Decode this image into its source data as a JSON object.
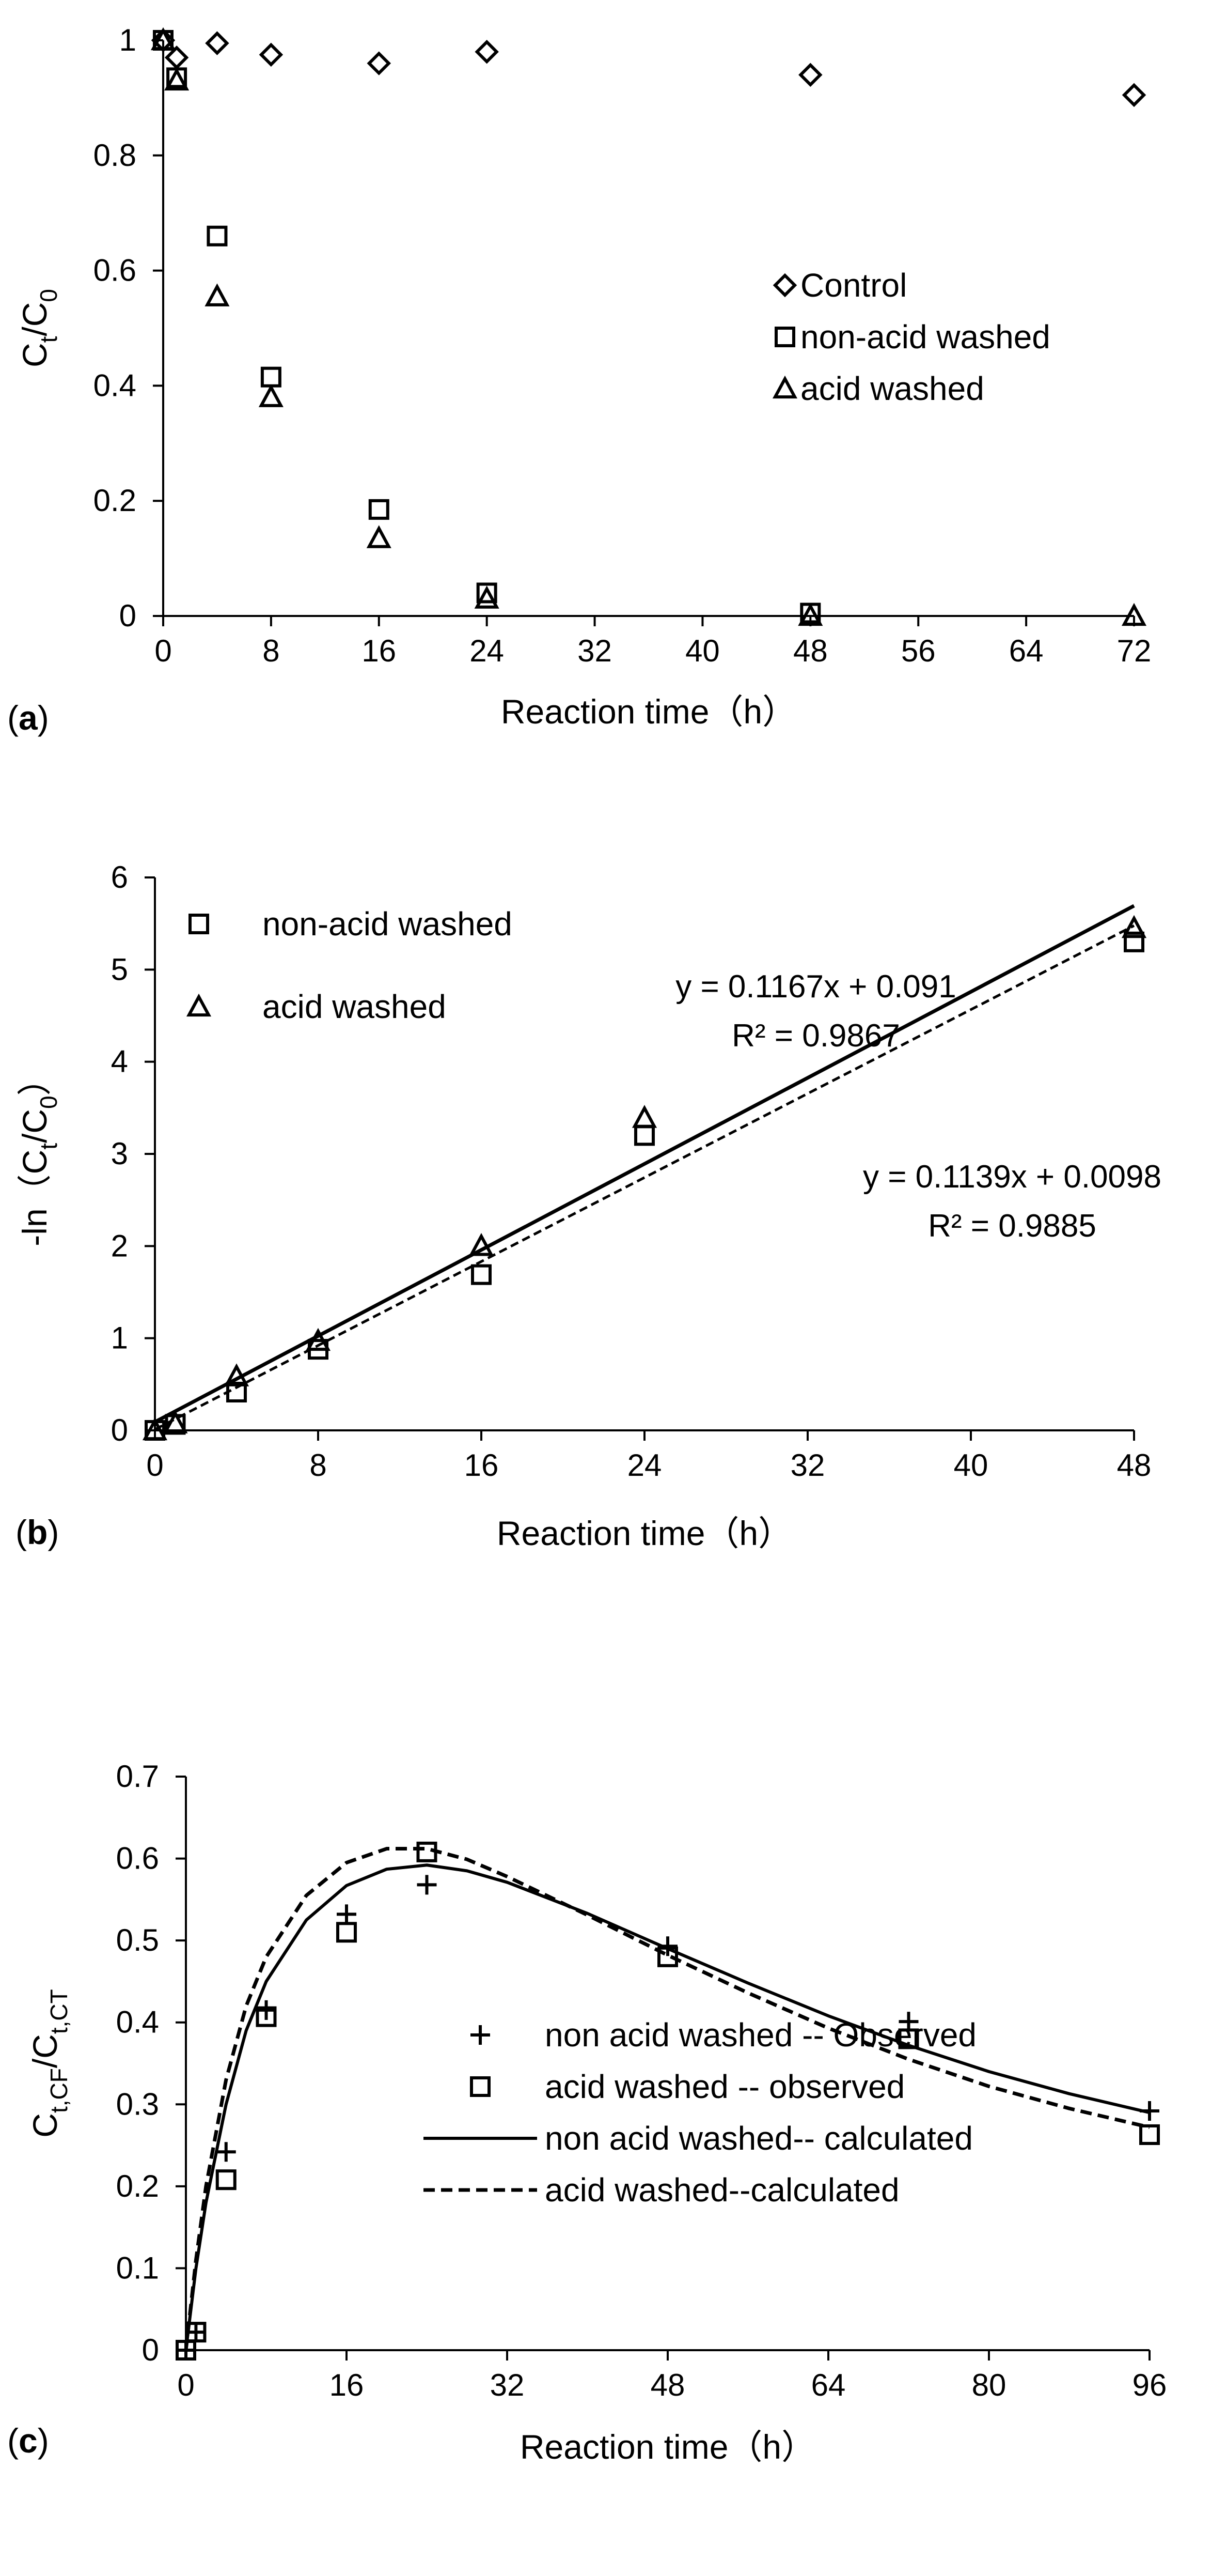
{
  "chart_data": [
    {
      "panel": "a",
      "type": "scatter",
      "panel_label": "a",
      "xlabel": "Reaction time（h）",
      "ylabel": {
        "base": "C",
        "sub1": "t",
        "mid": "/C",
        "sub2": "0"
      },
      "xlim": [
        0,
        72
      ],
      "ylim": [
        0,
        1
      ],
      "x_ticks": [
        0,
        8,
        16,
        24,
        32,
        40,
        48,
        56,
        64,
        72
      ],
      "y_ticks": [
        "0",
        "0.2",
        "0.4",
        "0.6",
        "0.8",
        "1"
      ],
      "legend_position": "right",
      "series": [
        {
          "name": "Control",
          "marker": "diamond",
          "x": [
            0,
            1,
            4,
            8,
            16,
            24,
            48,
            72
          ],
          "y": [
            1.0,
            0.97,
            0.995,
            0.975,
            0.96,
            0.98,
            0.94,
            0.905
          ]
        },
        {
          "name": "non-acid washed",
          "marker": "square",
          "x": [
            0,
            1,
            4,
            8,
            16,
            24,
            48
          ],
          "y": [
            1.0,
            0.935,
            0.66,
            0.415,
            0.185,
            0.04,
            0.005
          ]
        },
        {
          "name": "acid washed",
          "marker": "triangle",
          "x": [
            0,
            1,
            4,
            8,
            16,
            24,
            48,
            72
          ],
          "y": [
            1.0,
            0.93,
            0.555,
            0.38,
            0.135,
            0.03,
            0.0,
            0.0
          ]
        }
      ]
    },
    {
      "panel": "b",
      "type": "scatter",
      "panel_label": "b",
      "xlabel": "Reaction time（h）",
      "ylabel": {
        "pre": "-ln（C",
        "sub1": "t",
        "mid": "/C",
        "sub2": "0",
        "post": "）"
      },
      "xlim": [
        0,
        48
      ],
      "ylim": [
        0,
        6
      ],
      "x_ticks": [
        0,
        8,
        16,
        24,
        32,
        40,
        48
      ],
      "y_ticks": [
        "0",
        "1",
        "2",
        "3",
        "4",
        "5",
        "6"
      ],
      "legend_position": "top-left",
      "series": [
        {
          "name": "non-acid washed",
          "marker": "square",
          "x": [
            0,
            1,
            4,
            8,
            16,
            24,
            48
          ],
          "y": [
            0.0,
            0.065,
            0.415,
            0.88,
            1.69,
            3.2,
            5.3
          ]
        },
        {
          "name": "acid washed",
          "marker": "triangle",
          "x": [
            0,
            1,
            4,
            8,
            16,
            24,
            48
          ],
          "y": [
            0.0,
            0.075,
            0.585,
            0.97,
            2.0,
            3.39,
            5.45
          ]
        }
      ],
      "trendlines": [
        {
          "series": "acid washed",
          "style": "solid",
          "slope": 0.1167,
          "intercept": 0.091,
          "equation": "y = 0.1167x + 0.091",
          "r2": "R² = 0.9867"
        },
        {
          "series": "non-acid washed",
          "style": "dashed",
          "slope": 0.1139,
          "intercept": 0.0098,
          "equation": "y = 0.1139x + 0.0098",
          "r2": "R² = 0.9885"
        }
      ]
    },
    {
      "panel": "c",
      "type": "line",
      "panel_label": "c",
      "xlabel": "Reaction time（h）",
      "ylabel": {
        "base": "C",
        "sub1": "t,CF",
        "mid": "/C",
        "sub2": "t,CT"
      },
      "xlim": [
        0,
        96
      ],
      "ylim": [
        0,
        0.7
      ],
      "x_ticks": [
        0,
        16,
        32,
        48,
        64,
        80,
        96
      ],
      "y_ticks": [
        "0",
        "0.1",
        "0.2",
        "0.3",
        "0.4",
        "0.5",
        "0.6",
        "0.7"
      ],
      "legend_position": "bottom-right",
      "series": [
        {
          "name": "non acid washed -- Observed",
          "marker": "plus",
          "x": [
            0,
            1,
            4,
            8,
            16,
            24,
            48,
            72,
            96
          ],
          "y": [
            0.0,
            0.022,
            0.242,
            0.415,
            0.532,
            0.568,
            0.493,
            0.401,
            0.292
          ]
        },
        {
          "name": "acid washed -- observed",
          "marker": "square",
          "x": [
            0,
            1,
            4,
            8,
            16,
            24,
            48,
            72,
            96
          ],
          "y": [
            0.0,
            0.022,
            0.208,
            0.407,
            0.51,
            0.608,
            0.48,
            0.38,
            0.263
          ]
        },
        {
          "name": "non acid washed-- calculated",
          "style": "solid",
          "x": [
            0,
            1,
            2,
            4,
            6,
            8,
            12,
            16,
            20,
            24,
            28,
            32,
            40,
            48,
            56,
            64,
            72,
            80,
            88,
            96
          ],
          "y": [
            0.0,
            0.1,
            0.18,
            0.3,
            0.39,
            0.45,
            0.525,
            0.567,
            0.587,
            0.592,
            0.585,
            0.571,
            0.533,
            0.49,
            0.448,
            0.408,
            0.372,
            0.34,
            0.313,
            0.29
          ]
        },
        {
          "name": "acid washed--calculated",
          "style": "dashed",
          "x": [
            0,
            1,
            2,
            4,
            6,
            8,
            12,
            16,
            20,
            24,
            28,
            32,
            40,
            48,
            56,
            64,
            72,
            80,
            88,
            96
          ],
          "y": [
            0.0,
            0.11,
            0.2,
            0.33,
            0.42,
            0.48,
            0.555,
            0.595,
            0.612,
            0.612,
            0.599,
            0.578,
            0.531,
            0.482,
            0.436,
            0.393,
            0.355,
            0.322,
            0.295,
            0.272
          ]
        }
      ]
    }
  ]
}
